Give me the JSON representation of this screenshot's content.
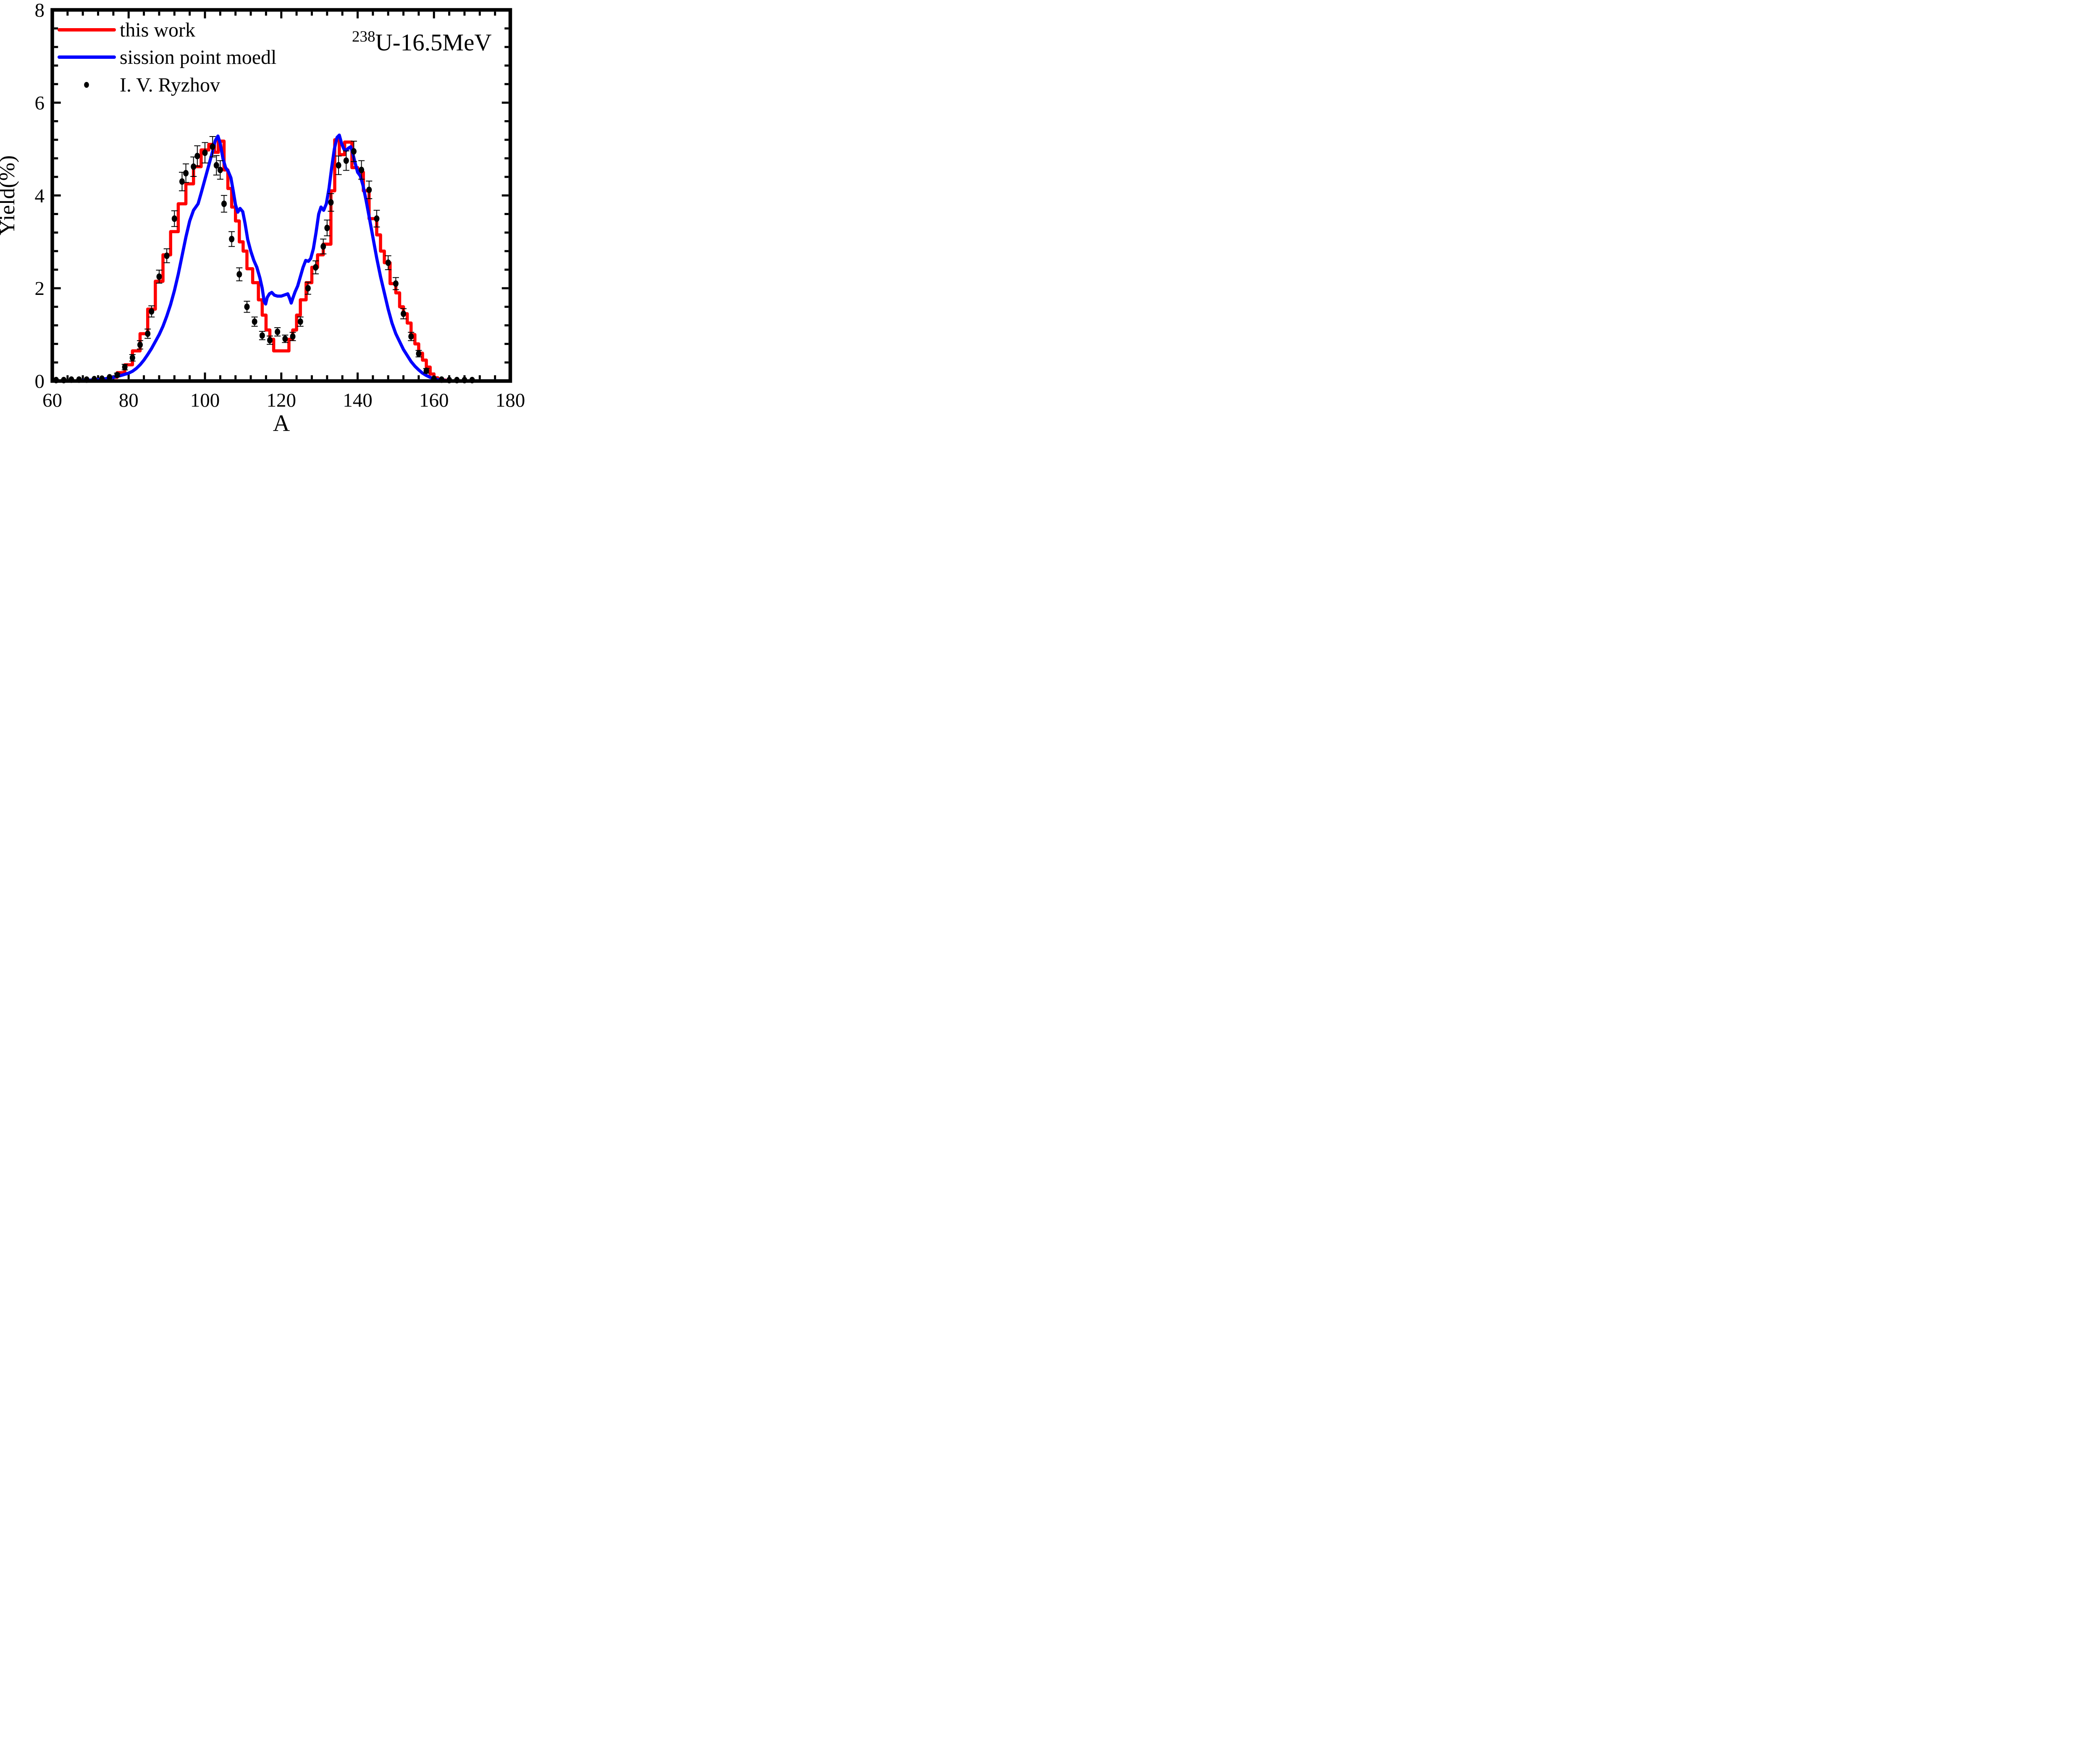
{
  "chart_data": {
    "type": "line",
    "annotation": {
      "superscript": "238",
      "text": "U-16.5MeV"
    },
    "xlabel": "A",
    "ylabel": "Yield(%)",
    "xlim": [
      60,
      180
    ],
    "ylim": [
      0,
      8
    ],
    "x_major_ticks": [
      60,
      80,
      100,
      120,
      140,
      160,
      180
    ],
    "x_minor_step": 4,
    "y_major_ticks": [
      0,
      2,
      4,
      6,
      8
    ],
    "y_minor_step": 0.4,
    "grid": false,
    "legend_position": "top-left",
    "colors": {
      "this_work": "#ff0000",
      "fission_point_model": "#0000ff",
      "experiment": "#000000",
      "axes": "#000000"
    },
    "legend": [
      {
        "label": "this work",
        "marker": "line",
        "color": "#ff0000"
      },
      {
        "label": "sission point moedl",
        "marker": "line",
        "color": "#0000ff"
      },
      {
        "label": "I. V. Ryzhov",
        "marker": "dot",
        "color": "#000000"
      }
    ],
    "series": [
      {
        "name": "this work",
        "render": "step-histogram",
        "color": "#ff0000",
        "bins": [
          [
            73,
            75,
            0.03
          ],
          [
            75,
            77,
            0.08
          ],
          [
            77,
            79,
            0.18
          ],
          [
            79,
            81,
            0.35
          ],
          [
            81,
            83,
            0.65
          ],
          [
            83,
            85,
            1.02
          ],
          [
            85,
            87,
            1.55
          ],
          [
            87,
            89,
            2.15
          ],
          [
            89,
            91,
            2.72
          ],
          [
            91,
            93,
            3.22
          ],
          [
            93,
            95,
            3.82
          ],
          [
            95,
            97,
            4.25
          ],
          [
            97,
            99,
            4.62
          ],
          [
            99,
            101,
            4.98
          ],
          [
            101,
            102.5,
            5.1
          ],
          [
            102.5,
            103.5,
            4.93
          ],
          [
            103.5,
            105,
            5.17
          ],
          [
            105,
            106,
            4.55
          ],
          [
            106,
            107,
            4.15
          ],
          [
            107,
            108,
            3.75
          ],
          [
            108,
            109,
            3.45
          ],
          [
            109,
            110,
            3.0
          ],
          [
            110,
            111,
            2.8
          ],
          [
            111,
            112.5,
            2.42
          ],
          [
            112.5,
            114,
            2.12
          ],
          [
            114,
            115,
            1.75
          ],
          [
            115,
            116,
            1.42
          ],
          [
            116,
            117,
            1.1
          ],
          [
            117,
            118,
            0.9
          ],
          [
            118,
            122,
            0.65
          ],
          [
            122,
            123,
            0.9
          ],
          [
            123,
            124,
            1.1
          ],
          [
            124,
            125,
            1.42
          ],
          [
            125,
            126.5,
            1.75
          ],
          [
            126.5,
            128,
            2.12
          ],
          [
            128,
            129.5,
            2.45
          ],
          [
            129.5,
            131,
            2.72
          ],
          [
            131,
            133,
            2.95
          ],
          [
            133,
            134,
            4.1
          ],
          [
            134,
            135.2,
            5.2
          ],
          [
            135.2,
            136.6,
            4.88
          ],
          [
            136.6,
            138.5,
            5.15
          ],
          [
            138.5,
            140,
            4.6
          ],
          [
            140,
            141.5,
            4.5
          ],
          [
            141.5,
            143,
            4.1
          ],
          [
            143,
            145,
            3.5
          ],
          [
            145,
            146,
            3.15
          ],
          [
            146,
            147,
            2.8
          ],
          [
            147,
            148.5,
            2.55
          ],
          [
            148.5,
            150,
            2.1
          ],
          [
            150,
            151,
            1.9
          ],
          [
            151,
            152,
            1.6
          ],
          [
            152,
            153,
            1.45
          ],
          [
            153,
            154,
            1.25
          ],
          [
            154,
            155,
            1.0
          ],
          [
            155,
            156,
            0.8
          ],
          [
            156,
            157,
            0.6
          ],
          [
            157,
            158,
            0.45
          ],
          [
            158,
            159,
            0.3
          ],
          [
            159,
            160,
            0.15
          ],
          [
            160,
            161,
            0.07
          ],
          [
            161,
            163,
            0.02
          ]
        ]
      },
      {
        "name": "sission point moedl",
        "render": "line",
        "color": "#0000ff",
        "points": [
          [
            68,
            0.01
          ],
          [
            70,
            0.02
          ],
          [
            72,
            0.03
          ],
          [
            74,
            0.05
          ],
          [
            76,
            0.08
          ],
          [
            78,
            0.12
          ],
          [
            80,
            0.17
          ],
          [
            81,
            0.21
          ],
          [
            82,
            0.27
          ],
          [
            83,
            0.35
          ],
          [
            84,
            0.45
          ],
          [
            85,
            0.57
          ],
          [
            86,
            0.7
          ],
          [
            87,
            0.85
          ],
          [
            88,
            1.0
          ],
          [
            89,
            1.18
          ],
          [
            90,
            1.4
          ],
          [
            91,
            1.65
          ],
          [
            92,
            1.95
          ],
          [
            93,
            2.3
          ],
          [
            94,
            2.7
          ],
          [
            95,
            3.1
          ],
          [
            96,
            3.45
          ],
          [
            97,
            3.68
          ],
          [
            97.6,
            3.75
          ],
          [
            98.2,
            3.82
          ],
          [
            99,
            4.05
          ],
          [
            100,
            4.35
          ],
          [
            101,
            4.65
          ],
          [
            102,
            4.95
          ],
          [
            102.7,
            5.18
          ],
          [
            103.4,
            5.28
          ],
          [
            104,
            5.12
          ],
          [
            104.7,
            4.8
          ],
          [
            105.4,
            4.6
          ],
          [
            106.1,
            4.52
          ],
          [
            106.8,
            4.38
          ],
          [
            107.4,
            4.1
          ],
          [
            108,
            3.8
          ],
          [
            108.6,
            3.64
          ],
          [
            109.2,
            3.72
          ],
          [
            109.9,
            3.65
          ],
          [
            110.5,
            3.4
          ],
          [
            111.2,
            3.05
          ],
          [
            112,
            2.8
          ],
          [
            112.8,
            2.6
          ],
          [
            113.6,
            2.45
          ],
          [
            114.4,
            2.22
          ],
          [
            115,
            2.0
          ],
          [
            115.5,
            1.72
          ],
          [
            115.9,
            1.66
          ],
          [
            116.3,
            1.8
          ],
          [
            116.9,
            1.88
          ],
          [
            117.5,
            1.91
          ],
          [
            118.2,
            1.85
          ],
          [
            119,
            1.83
          ],
          [
            120,
            1.83
          ],
          [
            121,
            1.86
          ],
          [
            121.7,
            1.88
          ],
          [
            122.2,
            1.78
          ],
          [
            122.6,
            1.68
          ],
          [
            123,
            1.78
          ],
          [
            123.6,
            1.92
          ],
          [
            124.3,
            2.05
          ],
          [
            125,
            2.25
          ],
          [
            125.7,
            2.45
          ],
          [
            126.4,
            2.6
          ],
          [
            127.1,
            2.58
          ],
          [
            127.7,
            2.64
          ],
          [
            128.4,
            2.85
          ],
          [
            129.1,
            3.2
          ],
          [
            129.8,
            3.6
          ],
          [
            130.4,
            3.75
          ],
          [
            131.1,
            3.68
          ],
          [
            131.8,
            3.82
          ],
          [
            132.5,
            4.15
          ],
          [
            133.2,
            4.6
          ],
          [
            133.9,
            5.0
          ],
          [
            134.6,
            5.25
          ],
          [
            135.2,
            5.3
          ],
          [
            135.8,
            5.12
          ],
          [
            136.4,
            5.0
          ],
          [
            137,
            4.97
          ],
          [
            137.6,
            5.02
          ],
          [
            138.2,
            5.05
          ],
          [
            138.8,
            4.88
          ],
          [
            139.4,
            4.68
          ],
          [
            140,
            4.5
          ],
          [
            140.7,
            4.42
          ],
          [
            141.4,
            4.22
          ],
          [
            142.2,
            3.9
          ],
          [
            143,
            3.55
          ],
          [
            144,
            3.1
          ],
          [
            145,
            2.65
          ],
          [
            146,
            2.25
          ],
          [
            147,
            1.9
          ],
          [
            148,
            1.55
          ],
          [
            149,
            1.25
          ],
          [
            150,
            1.02
          ],
          [
            151,
            0.85
          ],
          [
            152,
            0.68
          ],
          [
            153,
            0.55
          ],
          [
            154,
            0.42
          ],
          [
            155,
            0.32
          ],
          [
            156,
            0.24
          ],
          [
            157,
            0.17
          ],
          [
            158,
            0.12
          ],
          [
            159,
            0.08
          ],
          [
            160,
            0.05
          ],
          [
            161,
            0.03
          ],
          [
            162,
            0.02
          ],
          [
            163,
            0.01
          ]
        ]
      },
      {
        "name": "I. V. Ryzhov",
        "render": "scatter-errorbar",
        "color": "#000000",
        "points": [
          [
            61,
            0.02,
            0
          ],
          [
            63,
            0.02,
            0
          ],
          [
            65,
            0.03,
            0
          ],
          [
            67,
            0.03,
            0
          ],
          [
            69,
            0.03,
            0
          ],
          [
            71,
            0.04,
            0
          ],
          [
            73,
            0.05,
            0
          ],
          [
            75,
            0.08,
            0
          ],
          [
            77,
            0.13,
            0.04
          ],
          [
            79,
            0.3,
            0.06
          ],
          [
            81,
            0.5,
            0.07
          ],
          [
            83,
            0.78,
            0.09
          ],
          [
            85,
            1.02,
            0.1
          ],
          [
            86,
            1.5,
            0.12
          ],
          [
            88,
            2.25,
            0.14
          ],
          [
            90,
            2.7,
            0.15
          ],
          [
            92,
            3.5,
            0.17
          ],
          [
            94,
            4.3,
            0.2
          ],
          [
            95,
            4.48,
            0.2
          ],
          [
            97,
            4.62,
            0.21
          ],
          [
            98,
            4.85,
            0.22
          ],
          [
            100,
            4.92,
            0.22
          ],
          [
            102,
            5.05,
            0.22
          ],
          [
            103,
            4.65,
            0.21
          ],
          [
            104,
            4.55,
            0.2
          ],
          [
            105,
            3.82,
            0.18
          ],
          [
            107,
            3.06,
            0.16
          ],
          [
            109,
            2.3,
            0.14
          ],
          [
            111,
            1.6,
            0.12
          ],
          [
            113,
            1.28,
            0.1
          ],
          [
            115,
            0.98,
            0.09
          ],
          [
            117,
            0.88,
            0.09
          ],
          [
            119,
            1.06,
            0.09
          ],
          [
            121,
            0.91,
            0.08
          ],
          [
            123,
            0.96,
            0.09
          ],
          [
            125,
            1.28,
            0.1
          ],
          [
            127,
            2.0,
            0.13
          ],
          [
            129,
            2.45,
            0.14
          ],
          [
            131,
            2.9,
            0.16
          ],
          [
            132,
            3.3,
            0.17
          ],
          [
            133,
            3.85,
            0.19
          ],
          [
            135,
            4.65,
            0.2
          ],
          [
            137,
            4.75,
            0.21
          ],
          [
            139,
            4.95,
            0.22
          ],
          [
            141,
            4.55,
            0.2
          ],
          [
            143,
            4.12,
            0.19
          ],
          [
            145,
            3.5,
            0.18
          ],
          [
            148,
            2.55,
            0.15
          ],
          [
            150,
            2.1,
            0.13
          ],
          [
            152,
            1.45,
            0.11
          ],
          [
            154,
            0.96,
            0.09
          ],
          [
            156,
            0.59,
            0.07
          ],
          [
            158,
            0.22,
            0.05
          ],
          [
            160,
            0.05,
            0
          ],
          [
            162,
            0.03,
            0
          ],
          [
            164,
            0.02,
            0
          ],
          [
            166,
            0.02,
            0
          ],
          [
            168,
            0.02,
            0
          ],
          [
            170,
            0.02,
            0
          ]
        ]
      }
    ]
  }
}
